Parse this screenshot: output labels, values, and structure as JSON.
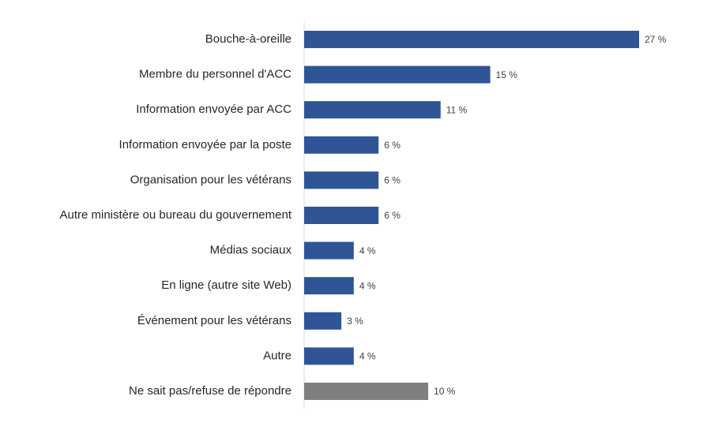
{
  "chart_data": {
    "type": "bar",
    "orientation": "horizontal",
    "categories": [
      "Bouche-à-oreille",
      "Membre du personnel d'ACC",
      "Information envoyée par ACC",
      "Information envoyée par la poste",
      "Organisation pour les vétérans",
      "Autre ministère ou bureau du gouvernement",
      "Médias sociaux",
      "En ligne (autre site Web)",
      "Événement pour les vétérans",
      "Autre",
      "Ne sait pas/refuse de répondre"
    ],
    "values": [
      27,
      15,
      11,
      6,
      6,
      6,
      4,
      4,
      3,
      4,
      10
    ],
    "value_labels": [
      "27 %",
      "15 %",
      "11 %",
      "6 %",
      "6 %",
      "6 %",
      "4 %",
      "4 %",
      "3 %",
      "4 %",
      "10 %"
    ],
    "colors": [
      "#2f5597",
      "#2f5597",
      "#2f5597",
      "#2f5597",
      "#2f5597",
      "#2f5597",
      "#2f5597",
      "#2f5597",
      "#2f5597",
      "#2f5597",
      "#7f7f7f"
    ]
  }
}
